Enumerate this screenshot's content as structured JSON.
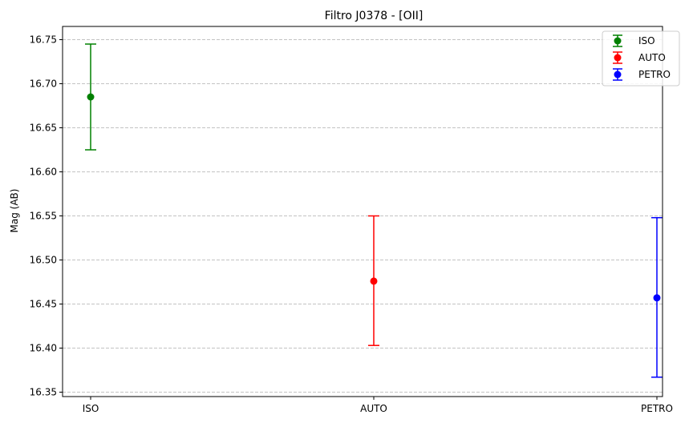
{
  "chart_data": {
    "type": "scatter",
    "title": "Filtro J0378 - [OII]",
    "xlabel": "",
    "ylabel": "Mag (AB)",
    "categories": [
      "ISO",
      "AUTO",
      "PETRO"
    ],
    "ylim": [
      16.345,
      16.765
    ],
    "yticks": [
      "16.35",
      "16.40",
      "16.45",
      "16.50",
      "16.55",
      "16.60",
      "16.65",
      "16.70",
      "16.75"
    ],
    "grid": "y dashed",
    "legend": "top-right",
    "series": [
      {
        "name": "ISO",
        "category": "ISO",
        "value": 16.685,
        "err_low": 16.625,
        "err_high": 16.745,
        "color": "#008000"
      },
      {
        "name": "AUTO",
        "category": "AUTO",
        "value": 16.476,
        "err_low": 16.403,
        "err_high": 16.55,
        "color": "#ff0000"
      },
      {
        "name": "PETRO",
        "category": "PETRO",
        "value": 16.457,
        "err_low": 16.367,
        "err_high": 16.548,
        "color": "#0000ff"
      }
    ]
  }
}
